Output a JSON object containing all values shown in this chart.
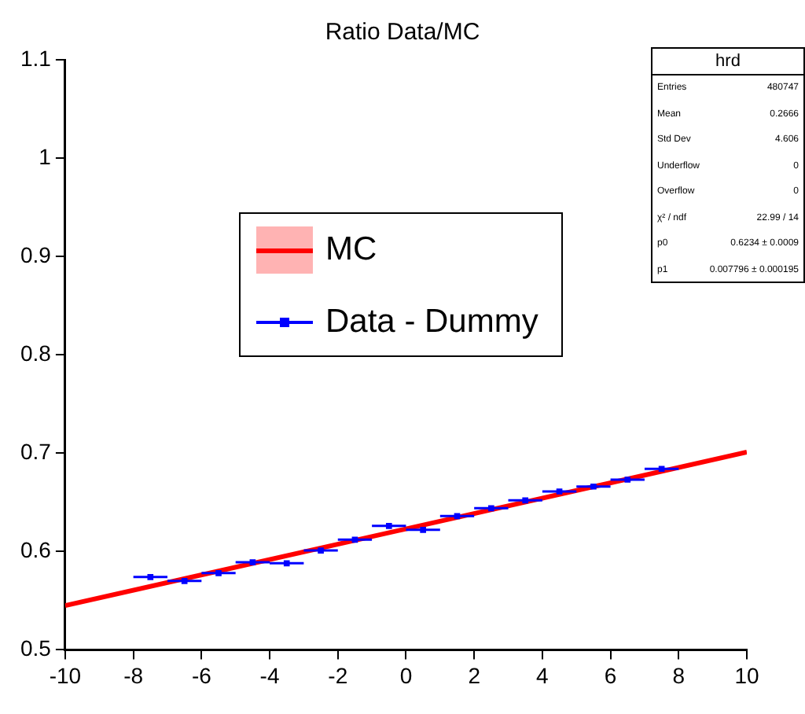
{
  "chart_data": {
    "type": "scatter",
    "title": "Ratio Data/MC",
    "xlim": [
      -10,
      10
    ],
    "xticks": [
      -10,
      -8,
      -6,
      -4,
      -2,
      0,
      2,
      4,
      6,
      8,
      10
    ],
    "ylim": [
      0.5,
      1.1
    ],
    "yticks": [
      0.5,
      0.6,
      0.7,
      0.8,
      0.9,
      1,
      1.1
    ],
    "grid": false,
    "legend": "top left",
    "series": [
      {
        "name": "MC",
        "type": "line",
        "color": "#ff0000",
        "x": [
          -10,
          10
        ],
        "values": [
          0.545,
          0.701
        ],
        "line_style": "solid",
        "marker": "none"
      },
      {
        "name": "Data - Dummy",
        "color": "#0000ff",
        "marker": "square",
        "x": [
          -7.5,
          -6.5,
          -5.5,
          -4.5,
          -3.5,
          -2.5,
          -1.5,
          -0.5,
          0.5,
          1.5,
          2.5,
          3.5,
          4.5,
          5.5,
          6.5,
          7.5
        ],
        "values": [
          0.574,
          0.57,
          0.578,
          0.589,
          0.588,
          0.601,
          0.612,
          0.626,
          0.622,
          0.636,
          0.644,
          0.652,
          0.661,
          0.666,
          0.673,
          0.684
        ],
        "xerrors": [
          0.5,
          0.5,
          0.5,
          0.5,
          0.5,
          0.5,
          0.5,
          0.5,
          0.5,
          0.5,
          0.5,
          0.5,
          0.5,
          0.5,
          0.5,
          0.5
        ]
      }
    ],
    "annotations": [
      "hrd",
      "Entries",
      "480747",
      "Mean",
      "0.2666",
      "Std Dev",
      "4.606",
      "Underflow",
      "0",
      "Overflow",
      "0",
      "χ² / ndf",
      "22.99 / 14",
      "p0",
      "0.6234 ± 0.0009",
      "p1",
      "0.007796 ± 0.000195"
    ]
  }
}
